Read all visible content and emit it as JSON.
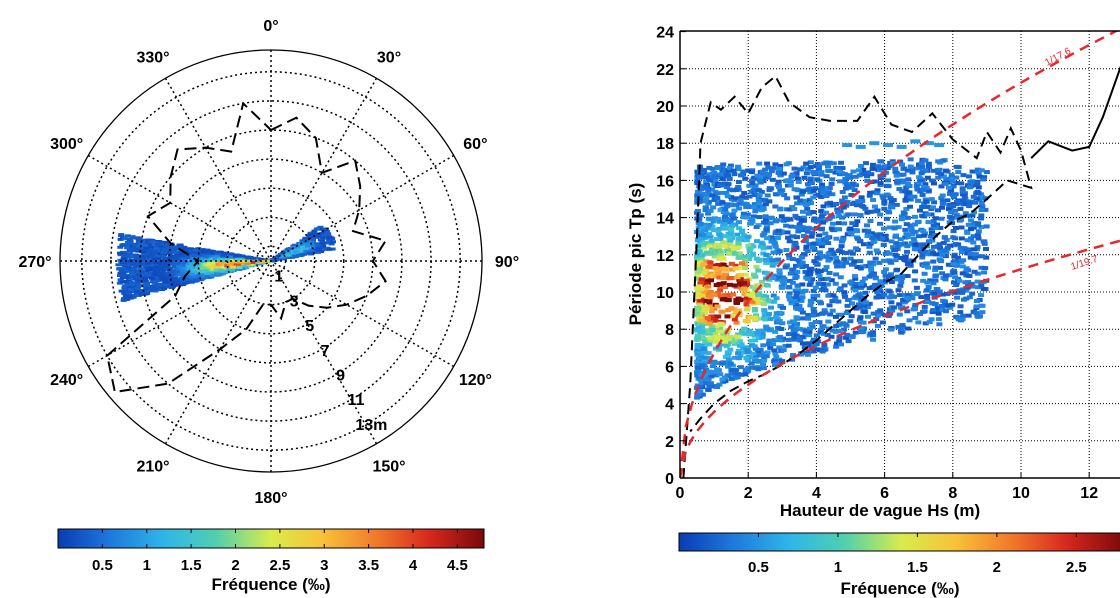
{
  "chart_data": [
    {
      "type": "polar_density",
      "angle_labels": [
        "0°",
        "30°",
        "60°",
        "90°",
        "120°",
        "150°",
        "180°",
        "210°",
        "240°",
        "270°",
        "300°",
        "330°"
      ],
      "ring_labels": [
        "1",
        "3",
        "5",
        "7",
        "9",
        "11",
        "13m"
      ],
      "ring_values": [
        1,
        3,
        5,
        7,
        9,
        11,
        13
      ],
      "r_max": 14.5,
      "envelope": "dashed",
      "density_peak": {
        "direction_deg": 265,
        "height_m": 1.2,
        "value": 4.6
      },
      "colorbar": {
        "label": "Fréquence (‰)",
        "ticks": [
          "0.5",
          "1",
          "1.5",
          "2",
          "2.5",
          "3",
          "3.5",
          "4",
          "4.5"
        ],
        "tick_values": [
          0.5,
          1,
          1.5,
          2,
          2.5,
          3,
          3.5,
          4,
          4.5
        ],
        "range": [
          0,
          4.8
        ]
      }
    },
    {
      "type": "heatmap",
      "xlabel": "Hauteur de vague Hs (m)",
      "ylabel": "Période pic Tp (s)",
      "xlim": [
        0,
        13
      ],
      "ylim": [
        0,
        24
      ],
      "xticks": [
        "0",
        "2",
        "4",
        "6",
        "8",
        "10",
        "12"
      ],
      "xtick_values": [
        0,
        2,
        4,
        6,
        8,
        10,
        12
      ],
      "yticks": [
        "0",
        "2",
        "4",
        "6",
        "8",
        "10",
        "12",
        "14",
        "16",
        "18",
        "20",
        "22",
        "24"
      ],
      "ytick_values": [
        0,
        2,
        4,
        6,
        8,
        10,
        12,
        14,
        16,
        18,
        20,
        22,
        24
      ],
      "grid": true,
      "steepness_curves": [
        {
          "label": "1/17.6",
          "color": "#e8262b"
        },
        {
          "label": "1/19.7",
          "color": "#e8262b"
        }
      ],
      "colorbar": {
        "label": "Fréquence (‰)",
        "ticks": [
          "0.5",
          "1",
          "1.5",
          "2",
          "2.5"
        ],
        "tick_values": [
          0.5,
          1,
          1.5,
          2,
          2.5
        ],
        "range": [
          0,
          2.8
        ]
      }
    }
  ]
}
